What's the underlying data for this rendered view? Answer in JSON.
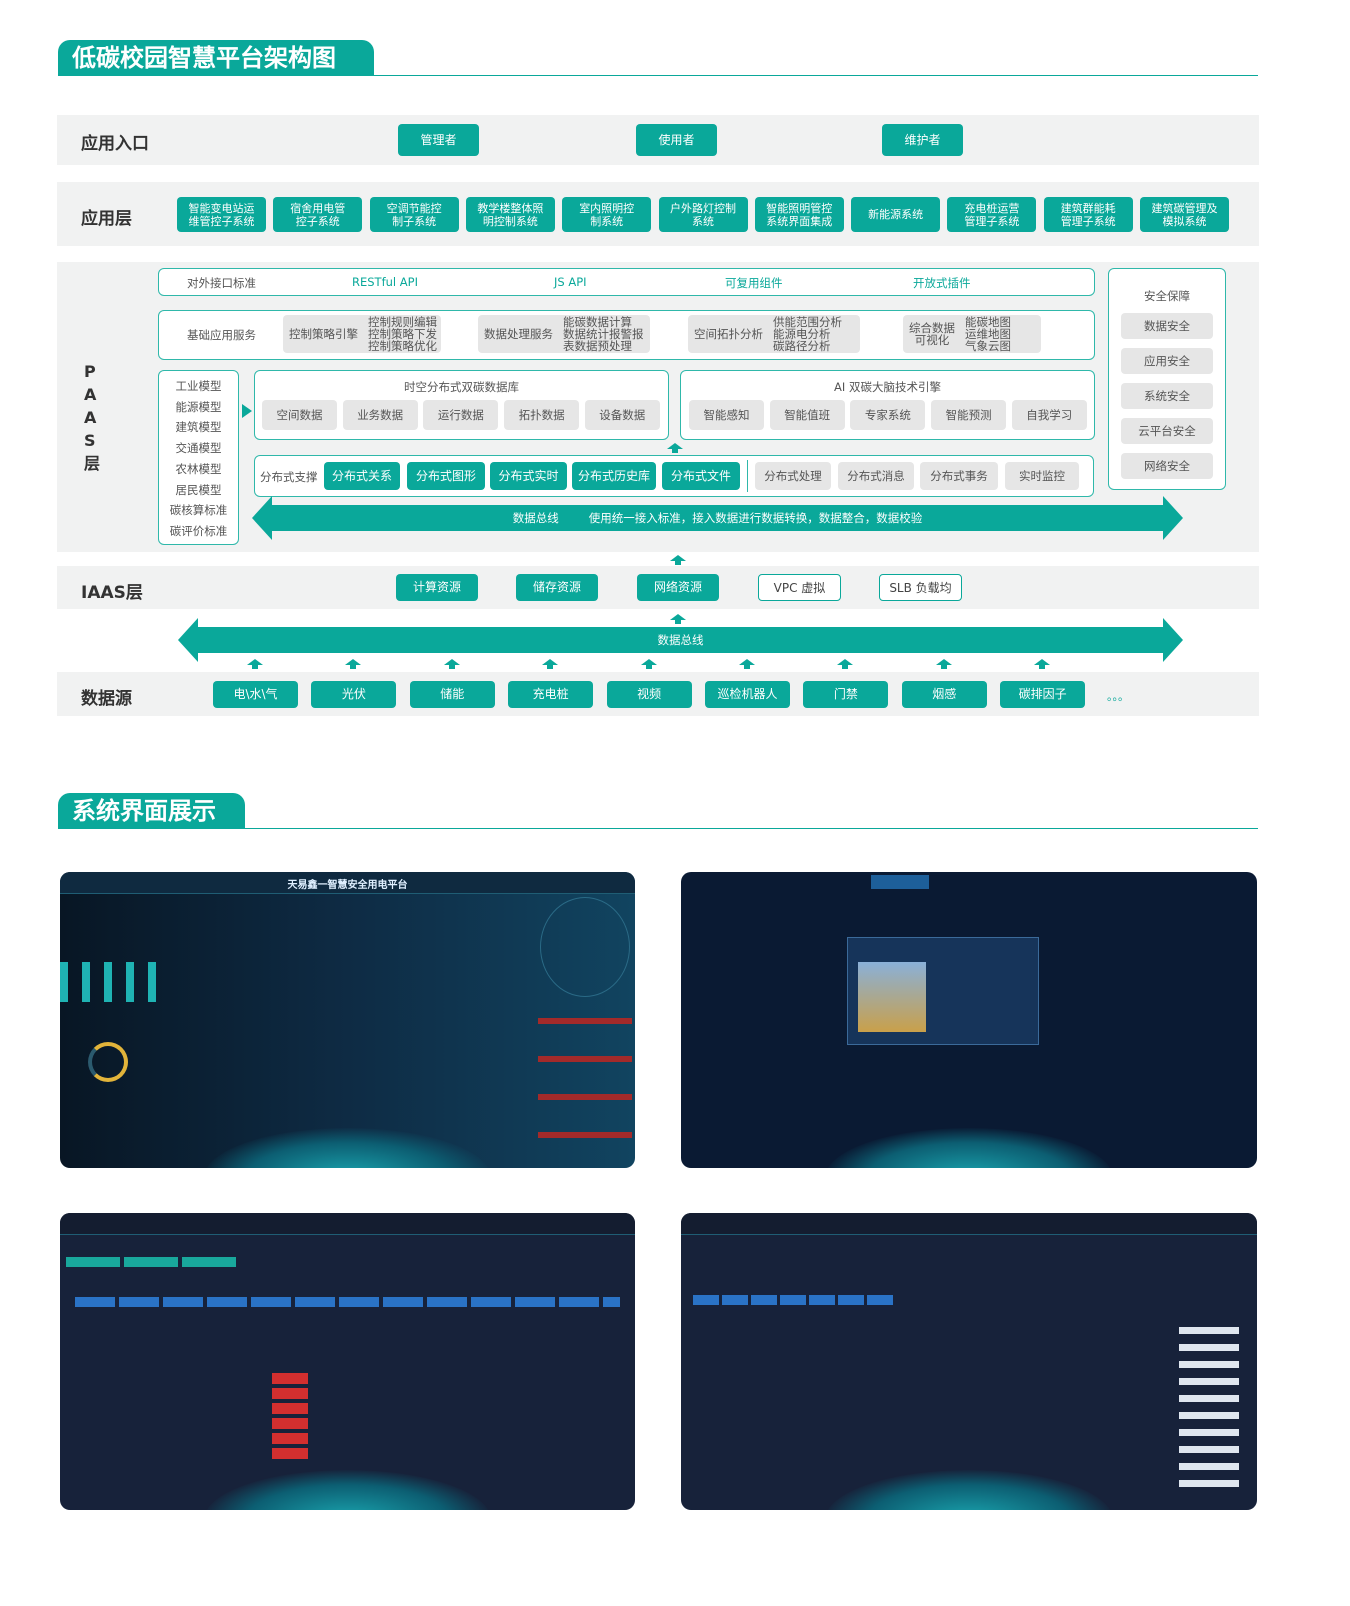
{
  "section1": {
    "title": "低碳校园智慧平台架构图"
  },
  "entry": {
    "label": "应用入口",
    "buttons": [
      "管理者",
      "使用者",
      "维护者"
    ]
  },
  "app_layer": {
    "label": "应用层",
    "items": [
      "智能变电站运\n维管控子系统",
      "宿舍用电管\n控子系统",
      "空调节能控\n制子系统",
      "教学楼整体照\n明控制系统",
      "室内照明控\n制系统",
      "户外路灯控制\n系统",
      "智能照明管控\n系统界面集成",
      "新能源系统",
      "充电桩运营\n管理子系统",
      "建筑群能耗\n管理子系统",
      "建筑碳管理及\n模拟系统"
    ]
  },
  "paas": {
    "label": "P\nA\nA\nS\n层",
    "interface": {
      "label": "对外接口标准",
      "items": [
        "RESTful API",
        "JS API",
        "可复用组件",
        "开放式插件"
      ]
    },
    "basic": {
      "label": "基础应用服务",
      "groups": [
        {
          "name": "控制策略引擎",
          "details": "控制规则编辑\n控制策略下发\n控制策略优化"
        },
        {
          "name": "数据处理服务",
          "details": "能碳数据计算\n数据统计报警报\n表数据预处理"
        },
        {
          "name": "空间拓扑分析",
          "details": "供能范围分析\n能源电分析\n碳路径分析"
        },
        {
          "name": "综合数据\n可视化",
          "details": "能碳地图\n运维地图\n气象云图"
        }
      ]
    },
    "models": [
      "工业模型",
      "能源模型",
      "建筑模型",
      "交通模型",
      "农林模型",
      "居民模型",
      "碳核算标准",
      "碳评价标准"
    ],
    "database": {
      "title": "时空分布式双碳数据库",
      "items": [
        "空间数据",
        "业务数据",
        "运行数据",
        "拓扑数据",
        "设备数据"
      ]
    },
    "ai": {
      "title": "AI 双碳大脑技术引擎",
      "items": [
        "智能感知",
        "智能值班",
        "专家系统",
        "智能预测",
        "自我学习"
      ]
    },
    "distributed": {
      "label": "分布式支撑",
      "highlight": [
        "分布式关系",
        "分布式图形",
        "分布式实时",
        "分布式历史库",
        "分布式文件"
      ],
      "others": [
        "分布式处理",
        "分布式消息",
        "分布式事务",
        "实时监控"
      ]
    },
    "bus": {
      "label": "数据总线",
      "desc": "使用统一接入标准，接入数据进行数据转换，数据整合，数据校验"
    },
    "security": {
      "title": "安全保障",
      "items": [
        "数据安全",
        "应用安全",
        "系统安全",
        "云平台安全",
        "网络安全"
      ]
    }
  },
  "iaas": {
    "label": "IAAS层",
    "filled": [
      "计算资源",
      "储存资源",
      "网络资源"
    ],
    "outlined": [
      "VPC 虚拟",
      "SLB 负载均"
    ]
  },
  "bus2": {
    "label": "数据总线"
  },
  "datasource": {
    "label": "数据源",
    "items": [
      "电\\水\\气",
      "光伏",
      "储能",
      "充电桩",
      "视频",
      "巡检机器人",
      "门禁",
      "烟感",
      "碳排因子"
    ],
    "more": "。。。"
  },
  "section2": {
    "title": "系统界面展示"
  },
  "screens": {
    "s1_title": "天易鑫一智慧安全用电平台"
  },
  "colors": {
    "accent": "#0aa89a",
    "band": "#f1f2f2",
    "screen_bg": "#0b1a2e"
  }
}
